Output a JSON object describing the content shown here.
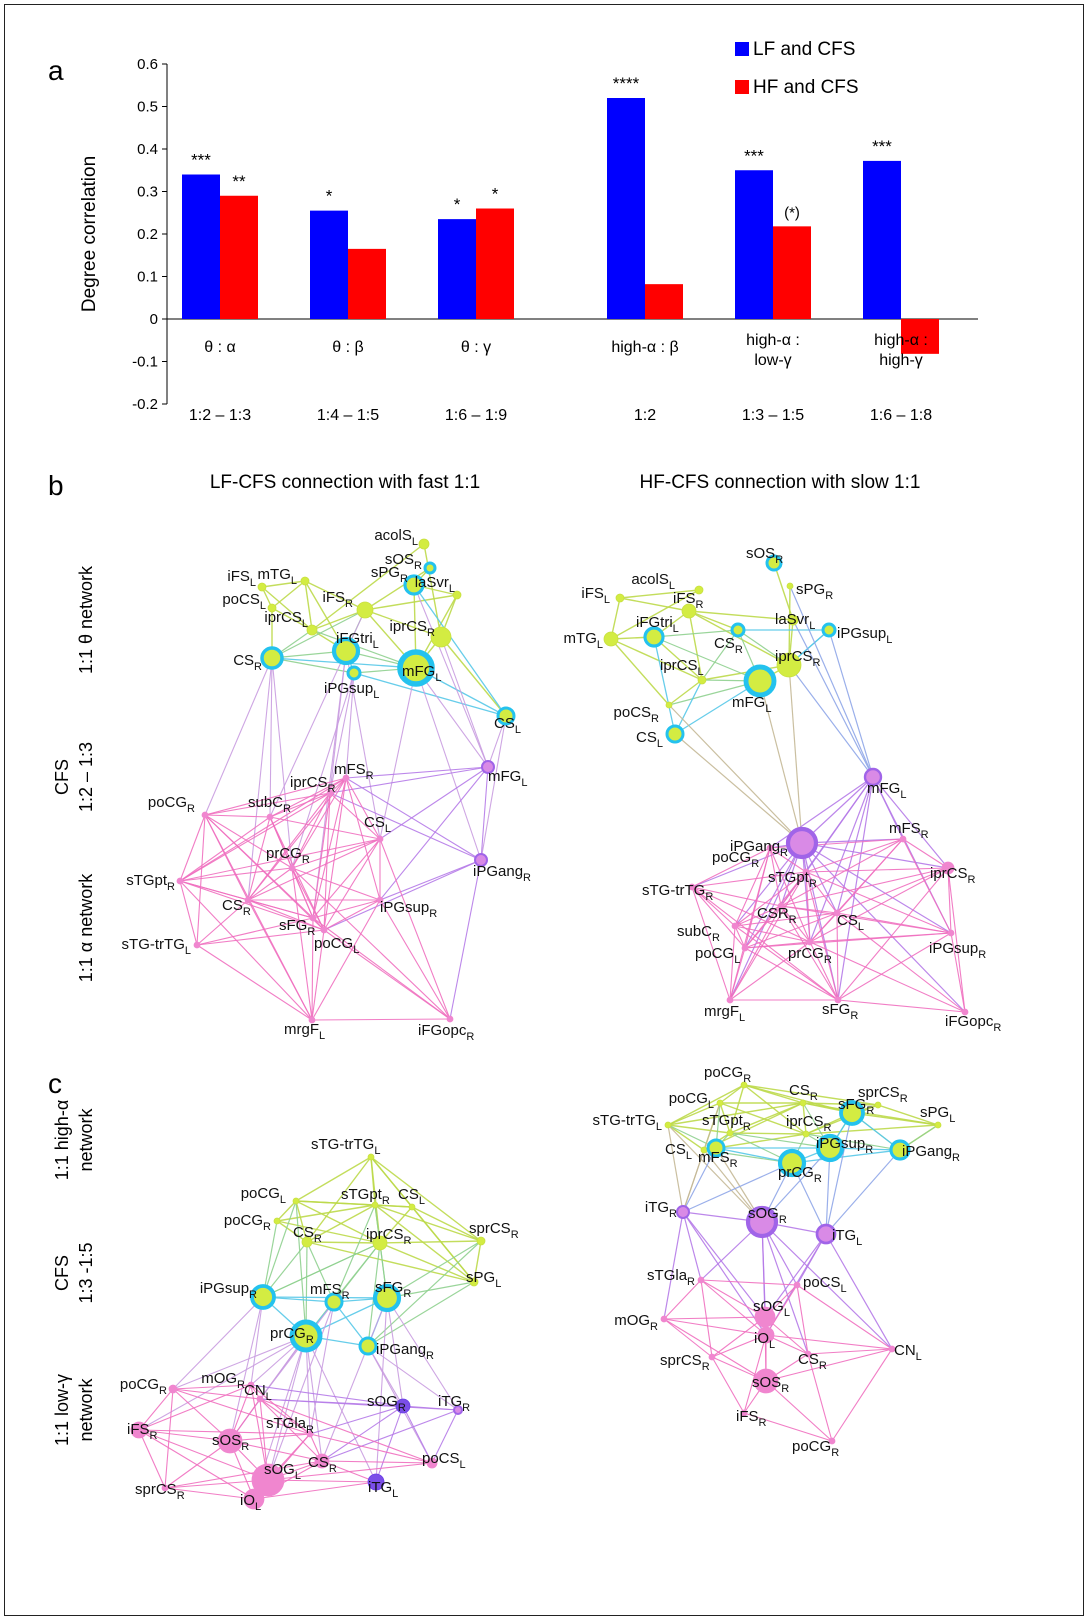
{
  "chart_data": [
    {
      "type": "bar",
      "panel": "a",
      "ylabel": "Degree correlation",
      "ylim": [
        -0.2,
        0.6
      ],
      "yticks": [
        "0.6",
        "0.5",
        "0.4",
        "0.3",
        "0.2",
        "0.1",
        "0",
        "-0.1",
        "-0.2"
      ],
      "categories": [
        "θ : α",
        "θ : β",
        "θ : γ",
        "high-α : β",
        "high-α : low-γ",
        "high-α : high-γ"
      ],
      "category_lines": [
        [
          "θ : α"
        ],
        [
          "θ : β"
        ],
        [
          "θ : γ"
        ],
        [
          "high-α : β"
        ],
        [
          "high-α :",
          "low-γ"
        ],
        [
          "high-α :",
          "high-γ"
        ]
      ],
      "ratios": [
        "1:2 – 1:3",
        "1:4 – 1:5",
        "1:6 – 1:9",
        "1:2",
        "1:3 – 1:5",
        "1:6 – 1:8"
      ],
      "series": [
        {
          "name": "LF and CFS",
          "color": "#0000ff",
          "values": [
            0.34,
            0.255,
            0.235,
            0.52,
            0.35,
            0.372
          ],
          "stars": [
            "***",
            "*",
            "*",
            "****",
            "***",
            "***"
          ]
        },
        {
          "name": "HF and CFS",
          "color": "#ff0000",
          "values": [
            0.29,
            0.165,
            0.26,
            0.082,
            0.218,
            -0.082
          ],
          "stars": [
            "**",
            "",
            "*",
            "",
            "(*)",
            ""
          ]
        }
      ],
      "legend": "top-right",
      "grid": false
    }
  ],
  "panel_labels": {
    "a": "a",
    "b": "b",
    "c": "c"
  },
  "panel_b": {
    "left_title": "LF-CFS connection with fast 1:1",
    "right_title": "HF-CFS connection with slow 1:1",
    "row_labels": {
      "top": "1:1 θ network",
      "mid1": "CFS",
      "mid2": "1:2 – 1:3",
      "bottom": "1:1 α network"
    }
  },
  "panel_c": {
    "row_labels": {
      "top1": "1:1 high-α",
      "top2": "network",
      "mid1": "CFS",
      "mid2": "1:3 -1:5",
      "bottom1": "1:1 low-γ",
      "bottom2": "network"
    }
  },
  "networks": {
    "b_left": [
      [
        "acolS",
        "L"
      ],
      [
        "mTG",
        "L"
      ],
      [
        "iFS",
        "L"
      ],
      [
        "poCS",
        "L"
      ],
      [
        "iprCS",
        "L"
      ],
      [
        "iFS",
        "R"
      ],
      [
        "sOS",
        "R"
      ],
      [
        "sPG",
        "R"
      ],
      [
        "laSvr",
        "L"
      ],
      [
        "iprCS",
        "R"
      ],
      [
        "iFGtri",
        "L"
      ],
      [
        "mFG",
        "L"
      ],
      [
        "CS",
        "R"
      ],
      [
        "iPGsup",
        "L"
      ],
      [
        "CS",
        "L"
      ],
      [
        "mFS",
        "R"
      ],
      [
        "mFG",
        "L"
      ],
      [
        "iprCS",
        "R"
      ],
      [
        "subC",
        "R"
      ],
      [
        "poCG",
        "R"
      ],
      [
        "CS",
        "L"
      ],
      [
        "sTGpt",
        "R"
      ],
      [
        "prCG",
        "R"
      ],
      [
        "iPGang",
        "R"
      ],
      [
        "CS",
        "R"
      ],
      [
        "sFG",
        "R"
      ],
      [
        "iPGsup",
        "R"
      ],
      [
        "poCG",
        "L"
      ],
      [
        "sTG-trTG",
        "L"
      ],
      [
        "mrgF",
        "L"
      ],
      [
        "iFGopc",
        "R"
      ]
    ],
    "b_right": [
      [
        "acolS",
        "L"
      ],
      [
        "sOS",
        "R"
      ],
      [
        "sPG",
        "R"
      ],
      [
        "iFS",
        "L"
      ],
      [
        "iFS",
        "R"
      ],
      [
        "laSvr",
        "L"
      ],
      [
        "mTG",
        "L"
      ],
      [
        "iFGtri",
        "L"
      ],
      [
        "CS",
        "R"
      ],
      [
        "iPGsup",
        "L"
      ],
      [
        "iprCS",
        "L"
      ],
      [
        "iprCS",
        "R"
      ],
      [
        "poCS",
        "R"
      ],
      [
        "mFG",
        "L"
      ],
      [
        "CS",
        "L"
      ],
      [
        "mFG",
        "L"
      ],
      [
        "iPGang",
        "R"
      ],
      [
        "mFS",
        "R"
      ],
      [
        "poCG",
        "R"
      ],
      [
        "sTGpt",
        "R"
      ],
      [
        "iprCS",
        "R"
      ],
      [
        "sTG-trTG",
        "R"
      ],
      [
        "CSR",
        "R"
      ],
      [
        "CS",
        "L"
      ],
      [
        "subC",
        "R"
      ],
      [
        "poCG",
        "L"
      ],
      [
        "prCG",
        "R"
      ],
      [
        "iPGsup",
        "R"
      ],
      [
        "mrgF",
        "L"
      ],
      [
        "sFG",
        "R"
      ],
      [
        "iFGopc",
        "R"
      ]
    ],
    "c_left": [
      [
        "sTG-trTG",
        "L"
      ],
      [
        "poCG",
        "L"
      ],
      [
        "sTGpt",
        "R"
      ],
      [
        "CS",
        "L"
      ],
      [
        "poCG",
        "R"
      ],
      [
        "CS",
        "R"
      ],
      [
        "iprCS",
        "R"
      ],
      [
        "sprCS",
        "R"
      ],
      [
        "sPG",
        "L"
      ],
      [
        "iPGsup",
        "R"
      ],
      [
        "mFS",
        "R"
      ],
      [
        "sFG",
        "R"
      ],
      [
        "prCG",
        "R"
      ],
      [
        "iPGang",
        "R"
      ],
      [
        "poCG",
        "R"
      ],
      [
        "mOG",
        "R"
      ],
      [
        "CN",
        "L"
      ],
      [
        "sOG",
        "R"
      ],
      [
        "iTG",
        "R"
      ],
      [
        "iFS",
        "R"
      ],
      [
        "sOS",
        "R"
      ],
      [
        "sTGla",
        "R"
      ],
      [
        "CS",
        "R"
      ],
      [
        "poCS",
        "L"
      ],
      [
        "sprCS",
        "R"
      ],
      [
        "sOG",
        "L"
      ],
      [
        "iO",
        "L"
      ],
      [
        "iTG",
        "L"
      ]
    ],
    "c_right": [
      [
        "poCG",
        "R"
      ],
      [
        "poCG",
        "L"
      ],
      [
        "CS",
        "R"
      ],
      [
        "sprCS",
        "R"
      ],
      [
        "sTG-trTG",
        "L"
      ],
      [
        "sFG",
        "R"
      ],
      [
        "sPG",
        "L"
      ],
      [
        "sTGpt",
        "R"
      ],
      [
        "iprCS",
        "R"
      ],
      [
        "CS",
        "L"
      ],
      [
        "mFS",
        "R"
      ],
      [
        "iPGsup",
        "R"
      ],
      [
        "iPGang",
        "R"
      ],
      [
        "prCG",
        "R"
      ],
      [
        "iTG",
        "R"
      ],
      [
        "sOG",
        "R"
      ],
      [
        "iTG",
        "L"
      ],
      [
        "sTGla",
        "R"
      ],
      [
        "poCS",
        "L"
      ],
      [
        "mOG",
        "R"
      ],
      [
        "sOG",
        "L"
      ],
      [
        "iO",
        "L"
      ],
      [
        "CS",
        "R"
      ],
      [
        "CN",
        "L"
      ],
      [
        "sprCS",
        "R"
      ],
      [
        "sOS",
        "R"
      ],
      [
        "iFS",
        "R"
      ],
      [
        "poCG",
        "R"
      ]
    ]
  }
}
